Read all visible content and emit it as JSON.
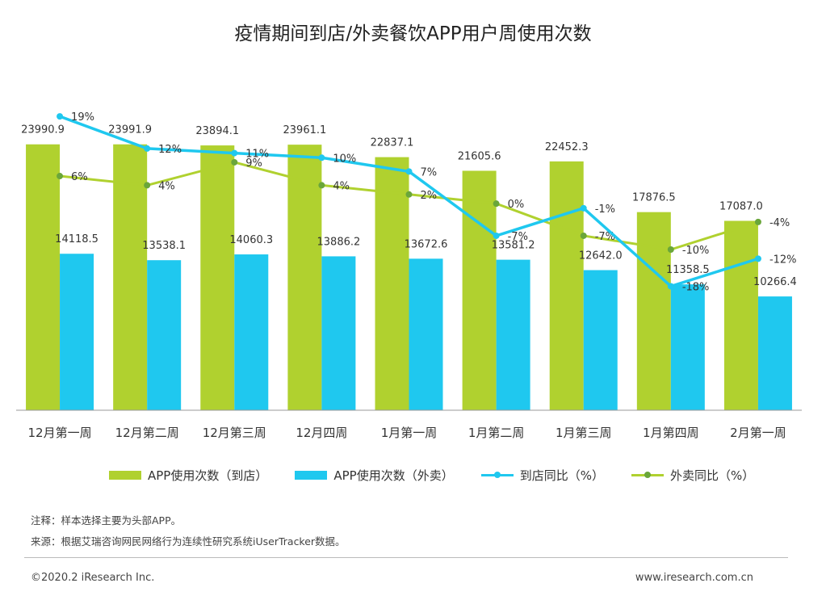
{
  "title": "疫情期间到店/外卖餐饮APP用户周使用次数",
  "chart_data": {
    "type": "bar",
    "title": "疫情期间到店/外卖餐饮APP用户周使用次数",
    "categories": [
      "12月第一周",
      "12月第二周",
      "12月第三周",
      "12月四周",
      "1月第一周",
      "1月第二周",
      "1月第三周",
      "1月第四周",
      "2月第一周"
    ],
    "bar_series": [
      {
        "name": "APP使用次数（到店）",
        "color": "#b0d12f",
        "values": [
          23990.9,
          23991.9,
          23894.1,
          23961.1,
          22837.1,
          21605.6,
          22452.3,
          17876.5,
          17087.0
        ],
        "labels": [
          "23990.9",
          "23991.9",
          "23894.1",
          "23961.1",
          "22837.1",
          "21605.6",
          "22452.3",
          "17876.5",
          "17087.0"
        ]
      },
      {
        "name": "APP使用次数（外卖）",
        "color": "#1fc8ef",
        "values": [
          14118.5,
          13538.1,
          14060.3,
          13886.2,
          13672.6,
          13581.2,
          12642.0,
          11358.5,
          10266.4
        ],
        "labels": [
          "14118.5",
          "13538.1",
          "14060.3",
          "13886.2",
          "13672.6",
          "13581.2",
          "12642.0",
          "11358.5",
          "10266.4"
        ]
      }
    ],
    "line_series": [
      {
        "name": "到店同比（%）",
        "color": "#1fc8ef",
        "values": [
          19,
          12,
          11,
          10,
          7,
          -7,
          -1,
          -18,
          -12
        ],
        "labels": [
          "19%",
          "12%",
          "11%",
          "10%",
          "7%",
          "-7%",
          "-1%",
          "-18%",
          "-12%"
        ]
      },
      {
        "name": "外卖同比（%）",
        "color": "#b0d12f",
        "values": [
          6,
          4,
          9,
          4,
          2,
          0,
          -7,
          -10,
          -4
        ],
        "labels": [
          "6%",
          "4%",
          "9%",
          "4%",
          "2%",
          "0%",
          "-7%",
          "-10%",
          "-4%"
        ]
      }
    ],
    "bar_ylim": [
      0,
      29000
    ],
    "line_ylim": [
      -45,
      25
    ],
    "grid": false,
    "legend_position": "bottom"
  },
  "notes": {
    "note": "注释：样本选择主要为头部APP。",
    "source": "来源：根据艾瑞咨询网民网络行为连续性研究系统iUserTracker数据。"
  },
  "footer": {
    "copyright": "©2020.2 iResearch Inc.",
    "website": "www.iresearch.com.cn"
  }
}
